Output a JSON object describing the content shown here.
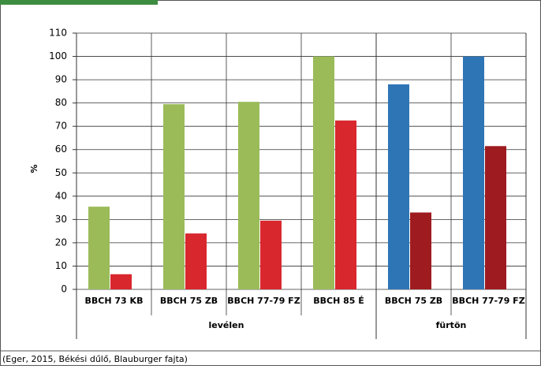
{
  "chart_data": {
    "type": "bar",
    "categories": [
      "BBCH 73 KB",
      "BBCH 75 ZB",
      "BBCH 77-79 FZ",
      "BBCH 85 É",
      "BBCH 75 ZB",
      "BBCH 77-79 FZ"
    ],
    "groups": [
      {
        "label": "levélen",
        "span": 4
      },
      {
        "label": "fürtön",
        "span": 2
      }
    ],
    "series": [
      {
        "colors": [
          "#9bbb59",
          "#9bbb59",
          "#9bbb59",
          "#9bbb59",
          "#2e75b6",
          "#2e75b6"
        ],
        "values": [
          35.5,
          79.5,
          80.5,
          100,
          88,
          100
        ]
      },
      {
        "colors": [
          "#d9272e",
          "#d9272e",
          "#d9272e",
          "#d9272e",
          "#9e1b20",
          "#9e1b20"
        ],
        "values": [
          6.5,
          24,
          29.5,
          72.5,
          33,
          61.5
        ]
      }
    ],
    "ylabel": "%",
    "ylim": [
      0,
      110
    ],
    "yticks": [
      0,
      10,
      20,
      30,
      40,
      50,
      60,
      70,
      80,
      90,
      100,
      110
    ],
    "grid": true,
    "footnote": "(Eger, 2015, Békési dűlő, Blauburger fajta)"
  }
}
